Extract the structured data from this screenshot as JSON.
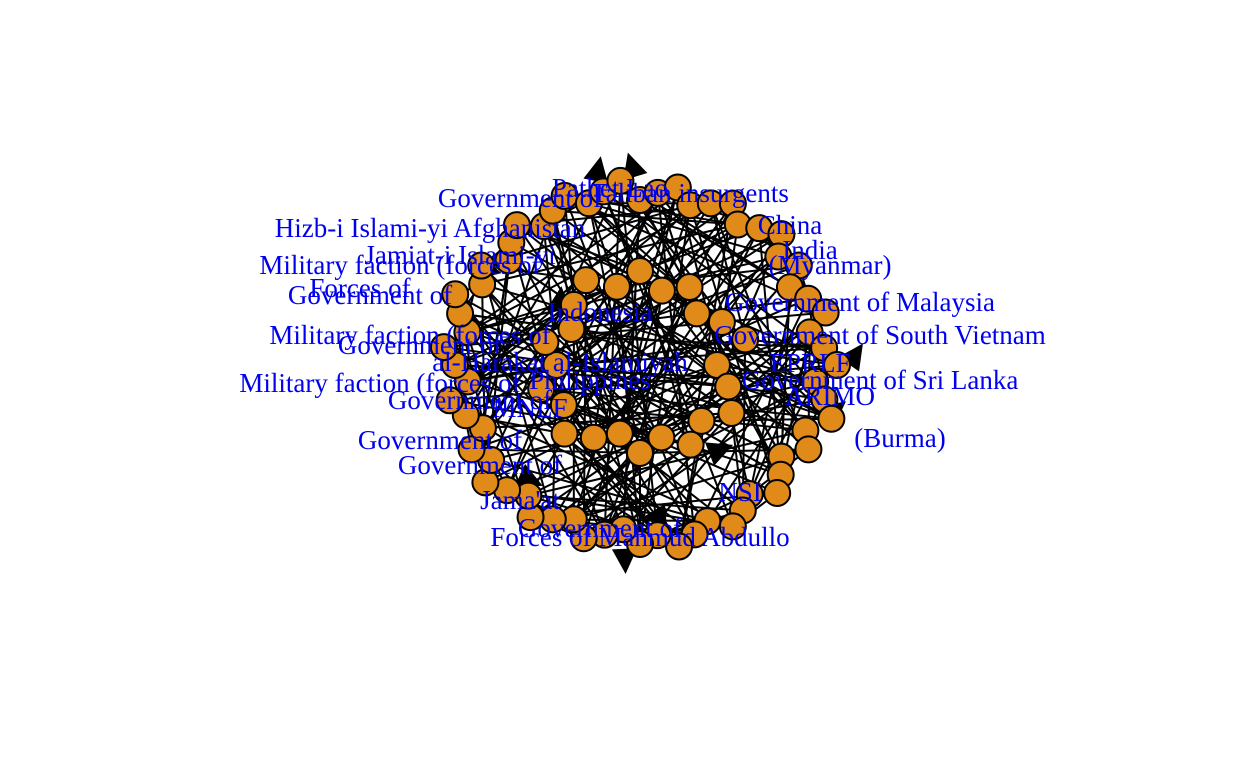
{
  "graph": {
    "node_color": "#e08a1a",
    "node_border_color": "#000000",
    "label_color": "#0000ee",
    "edge_color": "#000000",
    "labels": [
      "Pathet Lao",
      "Taliban insurgents",
      "Government of",
      "Hizb-i Islami-yi Afghanistan",
      "Jamiat-i Islami-yi",
      "Military faction (forces of",
      "Forces of",
      "Government of",
      "Military faction (forces of",
      "Government of",
      "al-Harakat al-Islamiyah",
      "Military faction (forces of",
      "Government of",
      "MNLF",
      "Government of",
      "Government of",
      "Jama'at",
      "Government of",
      "Forces of Mahmud Abdullo",
      "Government of Malaysia",
      "Government of South Vietnam",
      "EPRLF",
      "Government of Sri Lanka",
      "ARIMO",
      "NSI",
      "(Burma)",
      "China",
      "India",
      "(Myanmar)",
      "Indonesia",
      "Philippines"
    ]
  }
}
